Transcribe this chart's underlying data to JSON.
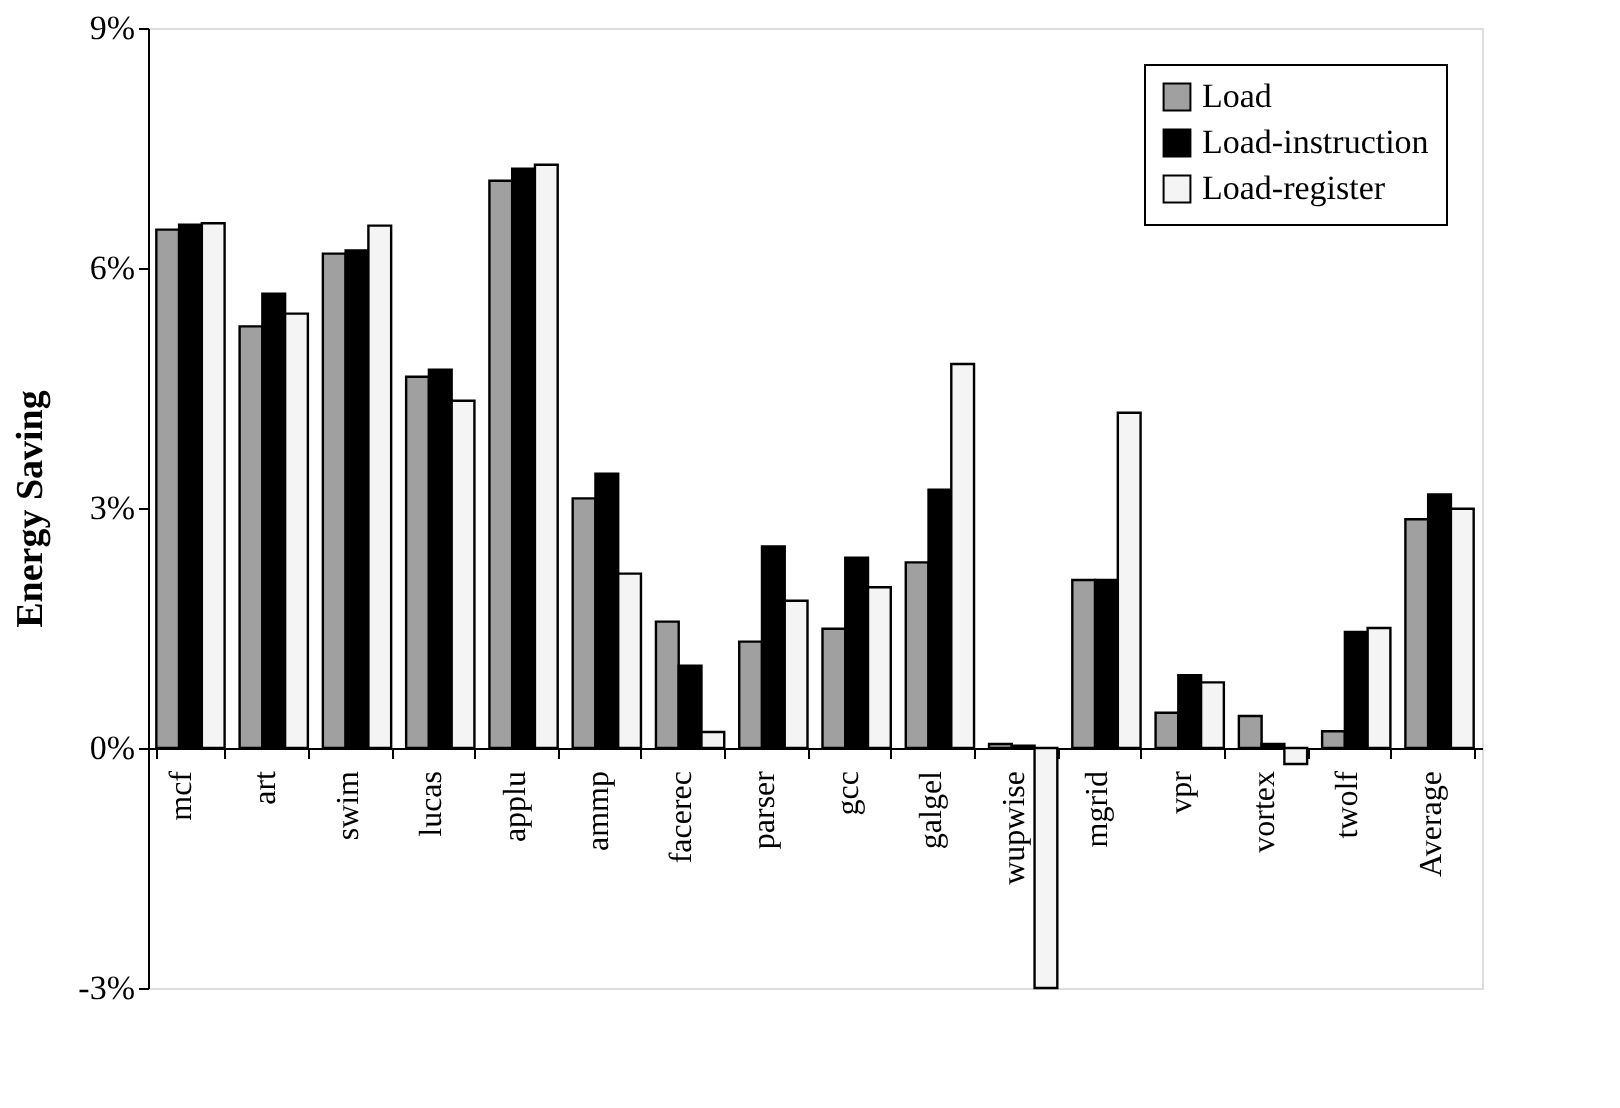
{
  "chart_data": {
    "type": "bar",
    "ylabel": "Energy Saving",
    "categories": [
      "mcf",
      "art",
      "swim",
      "lucas",
      "applu",
      "ammp",
      "facerec",
      "parser",
      "gcc",
      "galgel",
      "wupwise",
      "mgrid",
      "vpr",
      "vortex",
      "twolf",
      "Average"
    ],
    "series": [
      {
        "name": "Load",
        "color": "#a0a0a0",
        "values": [
          6.48,
          5.27,
          6.18,
          4.64,
          7.09,
          3.12,
          1.58,
          1.33,
          1.49,
          2.32,
          0.05,
          2.1,
          0.44,
          0.4,
          0.21,
          2.86
        ]
      },
      {
        "name": "Load-instruction",
        "color": "#000000",
        "values": [
          6.54,
          5.68,
          6.22,
          4.73,
          7.24,
          3.43,
          1.03,
          2.52,
          2.38,
          3.23,
          0.03,
          2.1,
          0.91,
          0.05,
          1.45,
          3.17
        ]
      },
      {
        "name": "Load-register",
        "color": "#f4f4f4",
        "values": [
          6.56,
          5.43,
          6.53,
          4.34,
          7.29,
          2.18,
          0.2,
          1.84,
          2.01,
          4.8,
          -3.0,
          4.19,
          0.82,
          -0.2,
          1.5,
          2.99
        ]
      }
    ],
    "ylim": [
      -3,
      9
    ],
    "yticks": [
      {
        "value": -3,
        "label": "-3%"
      },
      {
        "value": 0,
        "label": "0%"
      },
      {
        "value": 3,
        "label": "3%"
      },
      {
        "value": 6,
        "label": "6%"
      },
      {
        "value": 9,
        "label": "9%"
      }
    ],
    "grid": false,
    "legend": "top right"
  }
}
